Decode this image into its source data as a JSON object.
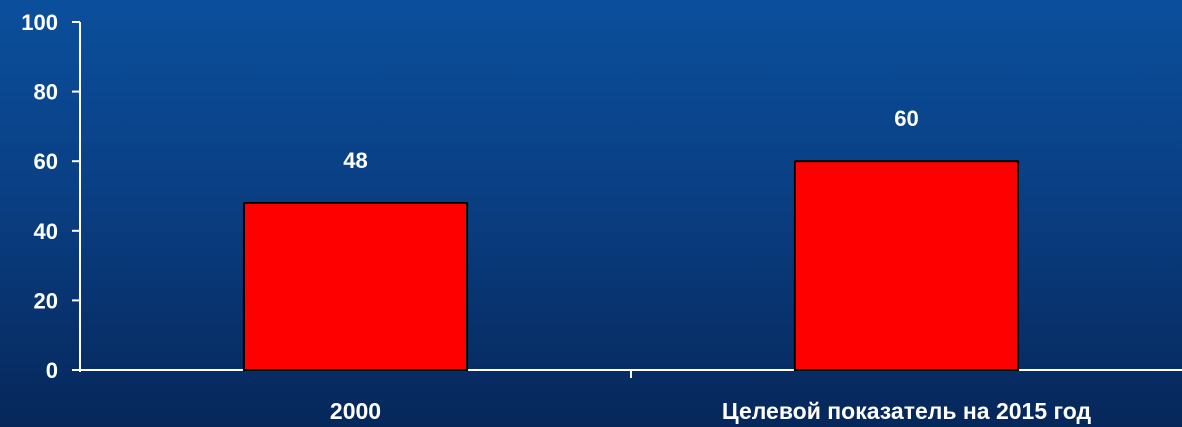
{
  "chart_data": {
    "type": "bar",
    "title": "",
    "xlabel": "",
    "ylabel": "",
    "categories": [
      "2000",
      "Целевой показатель на 2015 год"
    ],
    "values": [
      48,
      60
    ],
    "data_labels": [
      "48",
      "60"
    ],
    "ylim": [
      0,
      100
    ],
    "yticks": [
      0,
      20,
      40,
      60,
      80,
      100
    ],
    "ytick_labels": [
      "0",
      "20",
      "40",
      "60",
      "80",
      "100"
    ],
    "grid": false,
    "legend": "none",
    "colors": {
      "bar_fill": "#ff0000",
      "bar_stroke": "#000000",
      "axis": "#ffffff",
      "text": "#ffffff"
    }
  }
}
